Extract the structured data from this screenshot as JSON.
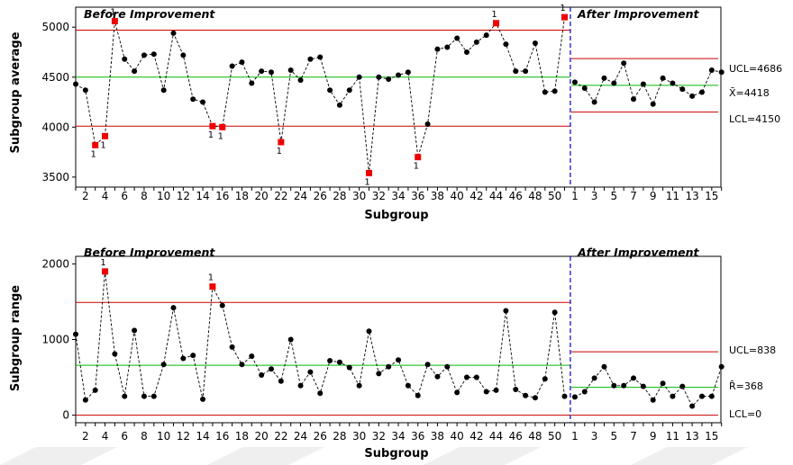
{
  "chart_data": [
    {
      "type": "line",
      "title": "",
      "xlabel": "Subgroup",
      "ylabel": "Subgroup average",
      "ylim": [
        3400,
        5200
      ],
      "yticks": [
        3500,
        4000,
        4500,
        5000
      ],
      "tick_every": 2,
      "phases": [
        {
          "name": "Before Improvement",
          "values": [
            4430,
            4370,
            3820,
            3910,
            5060,
            4680,
            4560,
            4720,
            4730,
            4370,
            4940,
            4720,
            4280,
            4250,
            4010,
            4000,
            4610,
            4650,
            4440,
            4560,
            4550,
            3850,
            4570,
            4470,
            4680,
            4700,
            4370,
            4220,
            4370,
            4500,
            3540,
            4500,
            4480,
            4520,
            4550,
            3700,
            4030,
            4780,
            4800,
            4890,
            4750,
            4850,
            4920,
            5040,
            4830,
            4560,
            4560,
            4840,
            4350,
            4360,
            5100
          ],
          "flagged": [
            3,
            4,
            5,
            15,
            16,
            22,
            31,
            36,
            44,
            51
          ],
          "ucl": 4970,
          "center": 4500,
          "lcl": 4010,
          "limit_labels": null
        },
        {
          "name": "After Improvement",
          "values": [
            4450,
            4390,
            4250,
            4490,
            4440,
            4640,
            4280,
            4430,
            4230,
            4490,
            4440,
            4380,
            4310,
            4350,
            4570,
            4550
          ],
          "flagged": [],
          "ucl": 4686,
          "center": 4418,
          "lcl": 4150,
          "limit_labels": {
            "ucl": "UCL=4686",
            "center": "X̄=4418",
            "lcl": "LCL=4150"
          }
        }
      ],
      "flag_label": "1"
    },
    {
      "type": "line",
      "title": "",
      "xlabel": "Subgroup",
      "ylabel": "Subgroup range",
      "ylim": [
        -100,
        2100
      ],
      "yticks": [
        0,
        1000,
        2000
      ],
      "tick_every": 2,
      "phases": [
        {
          "name": "Before Improvement",
          "values": [
            1070,
            200,
            330,
            1900,
            810,
            250,
            1120,
            250,
            250,
            670,
            1420,
            750,
            790,
            210,
            1700,
            1450,
            900,
            670,
            780,
            530,
            610,
            450,
            1000,
            390,
            570,
            290,
            720,
            700,
            630,
            390,
            1110,
            550,
            640,
            730,
            390,
            260,
            670,
            510,
            640,
            300,
            500,
            500,
            310,
            330,
            1380,
            340,
            260,
            230,
            480,
            1360,
            250
          ],
          "flagged": [
            4,
            15
          ],
          "ucl": 1490,
          "center": 660,
          "lcl": 0,
          "limit_labels": null
        },
        {
          "name": "After Improvement",
          "values": [
            240,
            310,
            490,
            640,
            390,
            390,
            490,
            380,
            200,
            420,
            250,
            380,
            120,
            250,
            250,
            640
          ],
          "flagged": [],
          "ucl": 838,
          "center": 368,
          "lcl": 0,
          "limit_labels": {
            "ucl": "UCL=838",
            "center": "R̄=368",
            "lcl": "LCL=0"
          }
        }
      ],
      "flag_label": "1"
    }
  ],
  "colors": {
    "limit": "#cc0000",
    "center": "#00bb00",
    "divider": "#0000cc",
    "point": "#000000",
    "flag_point": "#ee0000",
    "connector": "#000000"
  }
}
